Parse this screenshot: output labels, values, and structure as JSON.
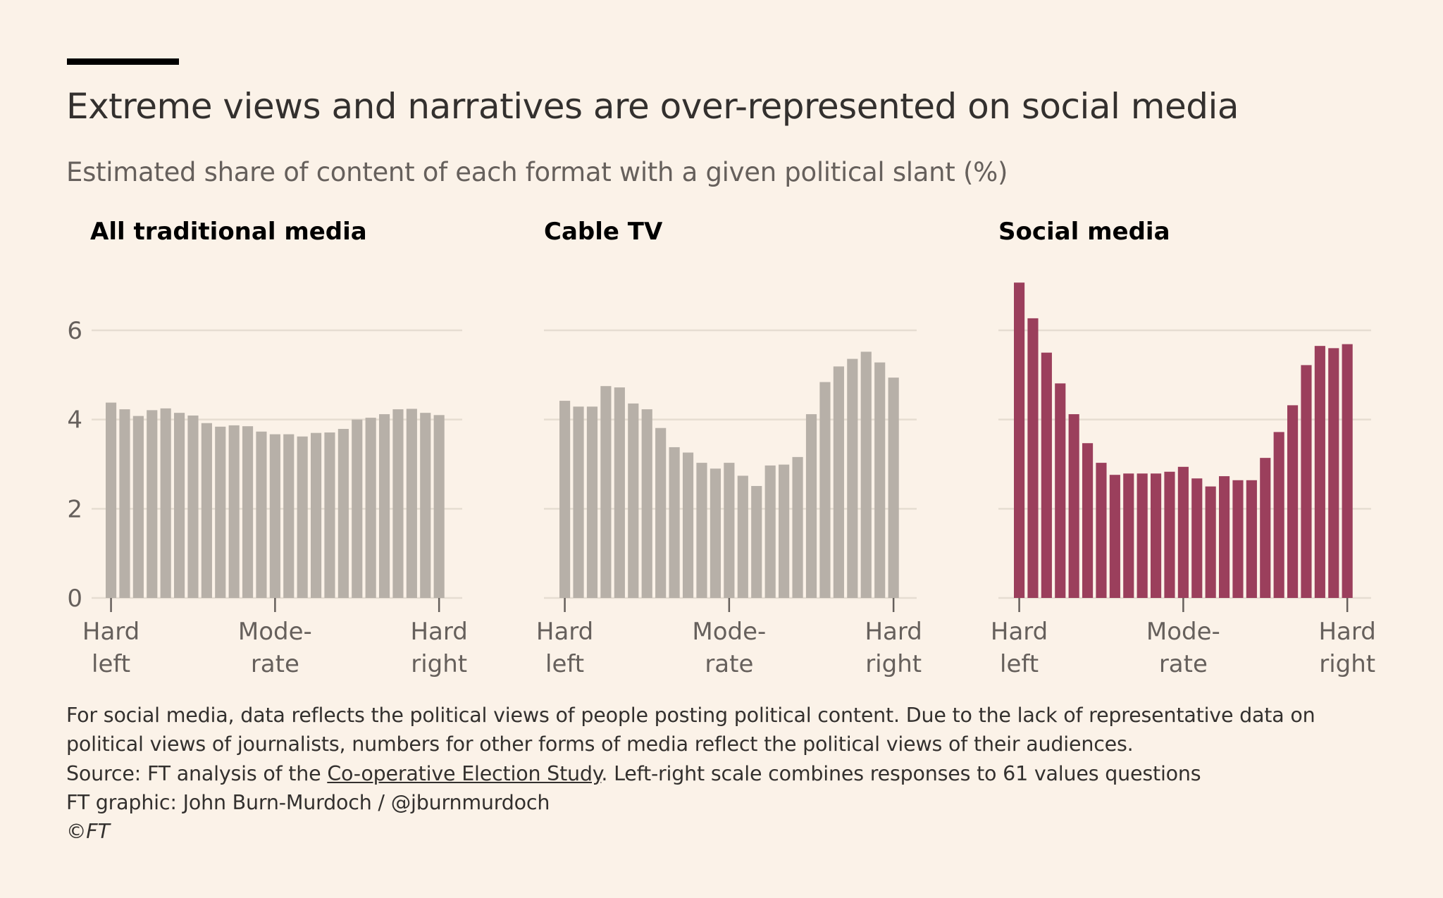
{
  "header": {
    "title": "Extreme views and narratives are over-represented on social media",
    "subtitle": "Estimated share of content of each format with a given political slant (%)"
  },
  "footer": {
    "note_line1": "For social media, data reflects the political views of people posting political content. Due to the lack of representative data on",
    "note_line2": "political views of journalists, numbers for other forms of media reflect the political views of their audiences.",
    "source_prefix": "Source: FT analysis of the ",
    "source_link": "Co-operative Election Study",
    "source_suffix": ". Left-right scale combines responses to 61 values questions",
    "credit": "FT graphic: John Burn-Murdoch / @jburnmurdoch",
    "copyright": "©FT"
  },
  "colors": {
    "background": "#fbf2e8",
    "neutral_bar": "#b7b0a8",
    "social_bar": "#9b3f5c",
    "grid": "#e6ddd2"
  },
  "chart_data": [
    {
      "type": "bar",
      "title": "All traditional media",
      "ylim": [
        0,
        7
      ],
      "yticks": [
        "0",
        "2",
        "4",
        "6"
      ],
      "xticks": [
        [
          "Hard",
          "left"
        ],
        [
          "Mode-",
          "rate"
        ],
        [
          "Hard",
          "right"
        ]
      ],
      "grid": true,
      "color": "#b7b0a8",
      "values": [
        4.38,
        4.23,
        4.08,
        4.21,
        4.25,
        4.15,
        4.09,
        3.92,
        3.84,
        3.87,
        3.85,
        3.73,
        3.67,
        3.67,
        3.62,
        3.7,
        3.71,
        3.79,
        4.0,
        4.04,
        4.12,
        4.23,
        4.24,
        4.15,
        4.1
      ]
    },
    {
      "type": "bar",
      "title": "Cable TV",
      "ylim": [
        0,
        7
      ],
      "xticks": [
        [
          "Hard",
          "left"
        ],
        [
          "Mode-",
          "rate"
        ],
        [
          "Hard",
          "right"
        ]
      ],
      "grid": true,
      "color": "#b7b0a8",
      "values": [
        4.42,
        4.29,
        4.29,
        4.75,
        4.72,
        4.36,
        4.23,
        3.81,
        3.38,
        3.26,
        3.03,
        2.9,
        3.03,
        2.74,
        2.51,
        2.97,
        2.99,
        3.16,
        4.12,
        4.84,
        5.19,
        5.36,
        5.52,
        5.28,
        4.94
      ]
    },
    {
      "type": "bar",
      "title": "Social media",
      "ylim": [
        0,
        7
      ],
      "xticks": [
        [
          "Hard",
          "left"
        ],
        [
          "Mode-",
          "rate"
        ],
        [
          "Hard",
          "right"
        ]
      ],
      "grid": true,
      "color": "#9b3f5c",
      "values": [
        7.07,
        6.27,
        5.5,
        4.81,
        4.12,
        3.47,
        3.03,
        2.76,
        2.79,
        2.79,
        2.79,
        2.83,
        2.94,
        2.68,
        2.5,
        2.73,
        2.64,
        2.64,
        3.14,
        3.72,
        4.32,
        5.22,
        5.65,
        5.6,
        5.69
      ]
    }
  ]
}
